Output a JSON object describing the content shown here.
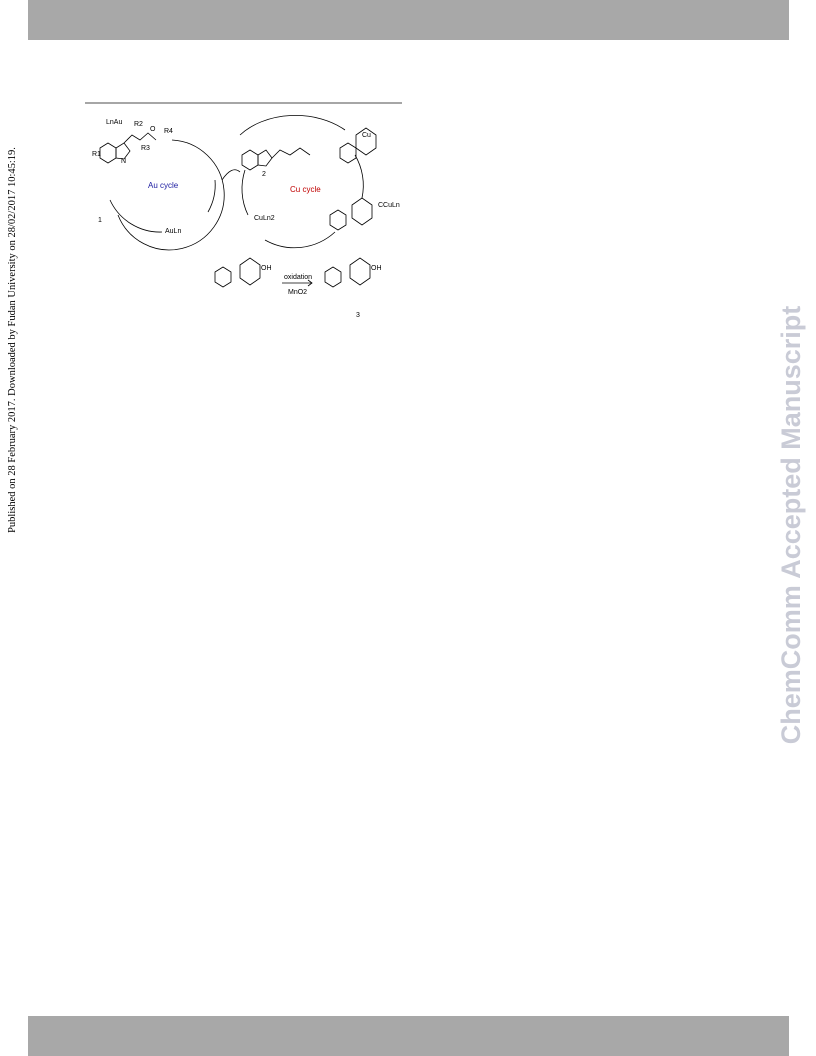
{
  "side_note": "Published on 28 February 2017. Downloaded by Fudan University on 28/02/2017 10:45:19.",
  "watermark": "ChemComm Accepted Manuscript",
  "scheme": {
    "au_cycle": "Au cycle",
    "cu_cycle": "Cu cycle",
    "au_catalyst": "AuLn",
    "cu_catalyst": "CuLn2",
    "au_complex": "LnAu",
    "cu_species": "CCuLn",
    "cu_ring": "Cu",
    "compound_1": "1",
    "compound_2": "2",
    "compound_3": "3",
    "oxidation": "oxidation",
    "oxidant": "MnO2",
    "hydroxyl_a": "OH",
    "hydroxyl_b": "OH",
    "nitrogen": "N",
    "oxygen": "O",
    "r1": "R1",
    "r2": "R2",
    "r3": "R3",
    "r4": "R4"
  }
}
